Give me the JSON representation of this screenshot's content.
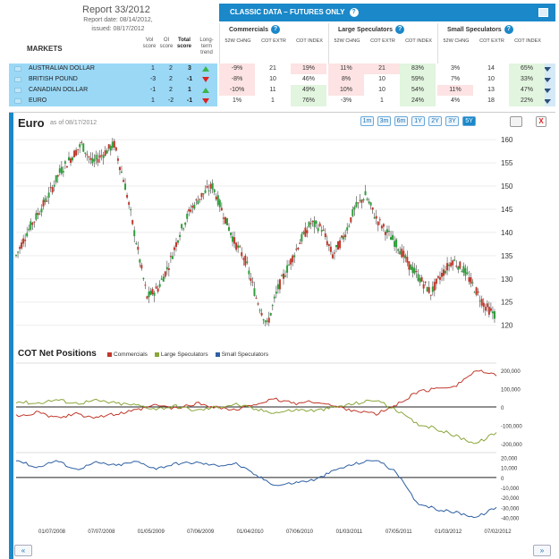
{
  "report": {
    "title": "Report 33/2012",
    "date_line": "Report date: 08/14/2012,",
    "issued_line": "issued: 08/17/2012"
  },
  "markets_label": "MARKETS",
  "left_headers": {
    "vol": "Vol score",
    "oi": "OI score",
    "total": "Total score",
    "trend": "Long-term trend"
  },
  "classic": {
    "title": "CLASSIC DATA – FUTURES ONLY",
    "help": "?",
    "groups": [
      {
        "name": "Commercials",
        "cols": [
          "52W CHNG",
          "COT EXTR",
          "COT INDEX"
        ]
      },
      {
        "name": "Large Speculators",
        "cols": [
          "52W CHNG",
          "COT EXTR",
          "COT INDEX"
        ]
      },
      {
        "name": "Small Speculators",
        "cols": [
          "52W CHNG",
          "COT EXTR",
          "COT INDEX"
        ]
      }
    ]
  },
  "rows": [
    {
      "market": "AUSTRALIAN DOLLAR",
      "vol": "1",
      "oi": "2",
      "total": "3",
      "trend": "up",
      "cells": [
        "-9%",
        "21",
        "19%",
        "11%",
        "21",
        "83%",
        "3%",
        "14",
        "65%"
      ]
    },
    {
      "market": "BRITISH POUND",
      "vol": "-3",
      "oi": "2",
      "total": "-1",
      "trend": "down",
      "cells": [
        "-8%",
        "10",
        "46%",
        "8%",
        "10",
        "59%",
        "7%",
        "10",
        "33%"
      ]
    },
    {
      "market": "CANADIAN DOLLAR",
      "vol": "-1",
      "oi": "2",
      "total": "1",
      "trend": "up",
      "cells": [
        "-10%",
        "11",
        "49%",
        "10%",
        "10",
        "54%",
        "11%",
        "13",
        "47%"
      ]
    },
    {
      "market": "EURO",
      "vol": "1",
      "oi": "-2",
      "total": "-1",
      "trend": "down",
      "cells": [
        "1%",
        "1",
        "76%",
        "-3%",
        "1",
        "24%",
        "4%",
        "18",
        "22%"
      ]
    }
  ],
  "cell_colors": {
    "pink": "#fde3e3",
    "green": "#e2f5df",
    "none": "#ffffff"
  },
  "chart_header": {
    "title": "Euro",
    "asof": "as of 08/17/2012",
    "ranges": [
      "1m",
      "3m",
      "6m",
      "1Y",
      "2Y",
      "3Y",
      "5Y"
    ],
    "active_range": "5Y",
    "close": "X"
  },
  "cot": {
    "title": "COT Net Positions",
    "legend": [
      {
        "name": "Commercials",
        "color": "#c0392b"
      },
      {
        "name": "Large Speculators",
        "color": "#8aa63a"
      },
      {
        "name": "Small Speculators",
        "color": "#2e5fa3"
      }
    ]
  },
  "nav": {
    "left": "«",
    "right": "»"
  },
  "chart_data": [
    {
      "type": "line",
      "title": "Euro",
      "ylabel": "",
      "ylim": [
        118,
        161
      ],
      "yticks": [
        120,
        125,
        130,
        135,
        140,
        145,
        150,
        155,
        160
      ],
      "x_ticklabels": [
        "01/07/2008",
        "07/07/2008",
        "01/05/2009",
        "07/06/2009",
        "01/04/2010",
        "07/06/2010",
        "01/03/2011",
        "07/05/2011",
        "01/03/2012",
        "07/02/2012"
      ],
      "series": [
        {
          "values": [
            135,
            140,
            144,
            148,
            153,
            156,
            159,
            155,
            157,
            159,
            150,
            138,
            126,
            128,
            133,
            140,
            145,
            148,
            150,
            144,
            138,
            134,
            126,
            120,
            128,
            133,
            138,
            142,
            141,
            135,
            139,
            145,
            148,
            143,
            140,
            137,
            133,
            130,
            127,
            131,
            134,
            132,
            128,
            124,
            122
          ]
        }
      ]
    },
    {
      "type": "line",
      "title": "COT Net Positions",
      "yticks": [
        200000,
        100000,
        0,
        -100000,
        -200000
      ],
      "ytick_labels": [
        "200,000",
        "100,000",
        "0",
        "-100,000",
        "-200,000"
      ],
      "series": [
        {
          "name": "Commercials",
          "values": [
            -50000,
            -30000,
            -60000,
            -40000,
            -55000,
            -40000,
            -20000,
            10000,
            -10000,
            20000,
            0,
            -20000,
            20000,
            40000,
            20000,
            30000,
            0,
            -20000,
            -40000,
            10000,
            80000,
            100000,
            120000,
            200000,
            170000
          ]
        },
        {
          "name": "Large Speculators",
          "values": [
            30000,
            20000,
            40000,
            20000,
            35000,
            20000,
            10000,
            -10000,
            5000,
            -20000,
            0,
            15000,
            -15000,
            -30000,
            -15000,
            -20000,
            0,
            20000,
            40000,
            -20000,
            -90000,
            -120000,
            -160000,
            -200000,
            -140000
          ]
        }
      ]
    },
    {
      "type": "line",
      "title": "",
      "yticks": [
        20000,
        10000,
        0,
        -10000,
        -20000,
        -30000,
        -40000
      ],
      "ytick_labels": [
        "20,000",
        "10,000",
        "0",
        "-10,000",
        "-20,000",
        "-30,000",
        "-40,000"
      ],
      "series": [
        {
          "name": "Small Speculators",
          "values": [
            18000,
            10000,
            17000,
            8000,
            15000,
            12000,
            16000,
            9000,
            14000,
            15000,
            12000,
            14000,
            2000,
            -8000,
            -5000,
            -2000,
            8000,
            14000,
            18000,
            5000,
            -25000,
            -32000,
            -35000,
            -40000,
            -30000
          ]
        }
      ]
    }
  ]
}
